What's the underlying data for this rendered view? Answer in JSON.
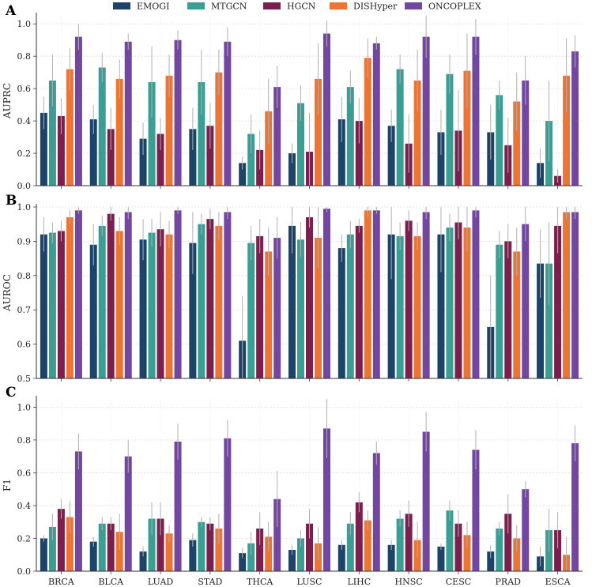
{
  "chart_data": {
    "type": "bar",
    "categories": [
      "BRCA",
      "BLCA",
      "LUAD",
      "STAD",
      "THCA",
      "LUSC",
      "LIHC",
      "HNSC",
      "CESC",
      "PRAD",
      "ESCA"
    ],
    "series": [
      {
        "name": "EMOGI",
        "color": "#1c4468"
      },
      {
        "name": "MTGCN",
        "color": "#3a9e94"
      },
      {
        "name": "HGCN",
        "color": "#7a1f4e"
      },
      {
        "name": "DISHyper",
        "color": "#ec7534"
      },
      {
        "name": "ONCOPLEX",
        "color": "#7346a2"
      }
    ],
    "panels": [
      {
        "label": "A",
        "ylabel": "AUPRC",
        "ylim": [
          0,
          1.05
        ],
        "yticks": [
          "0.0",
          "0.2",
          "0.4",
          "0.6",
          "0.8",
          "1.0"
        ],
        "show_xticklabels": false,
        "values": [
          [
            0.45,
            0.41,
            0.29,
            0.35,
            0.14,
            0.2,
            0.41,
            0.37,
            0.33,
            0.33,
            0.14
          ],
          [
            0.65,
            0.73,
            0.64,
            0.64,
            0.32,
            0.51,
            0.61,
            0.72,
            0.69,
            0.56,
            0.4
          ],
          [
            0.43,
            0.35,
            0.32,
            0.37,
            0.22,
            0.21,
            0.4,
            0.26,
            0.34,
            0.25,
            0.06
          ],
          [
            0.72,
            0.66,
            0.68,
            0.7,
            0.46,
            0.66,
            0.79,
            0.65,
            0.71,
            0.52,
            0.68
          ],
          [
            0.92,
            0.89,
            0.9,
            0.89,
            0.61,
            0.94,
            0.88,
            0.92,
            0.92,
            0.65,
            0.83
          ]
        ],
        "errors": [
          [
            0.1,
            0.09,
            0.1,
            0.13,
            0.04,
            0.06,
            0.14,
            0.1,
            0.14,
            0.17,
            0.09
          ],
          [
            0.16,
            0.09,
            0.22,
            0.2,
            0.12,
            0.11,
            0.1,
            0.09,
            0.12,
            0.09,
            0.25
          ],
          [
            0.11,
            0.13,
            0.1,
            0.14,
            0.12,
            0.24,
            0.14,
            0.18,
            0.25,
            0.17,
            0.04
          ],
          [
            0.13,
            0.12,
            0.13,
            0.14,
            0.2,
            0.22,
            0.12,
            0.19,
            0.23,
            0.18,
            0.23
          ],
          [
            0.08,
            0.05,
            0.06,
            0.09,
            0.13,
            0.08,
            0.04,
            0.13,
            0.11,
            0.15,
            0.1
          ]
        ]
      },
      {
        "label": "B",
        "ylabel": "AUROC",
        "ylim": [
          0.5,
          1.0
        ],
        "yticks": [
          "0.5",
          "0.6",
          "0.7",
          "0.8",
          "0.9",
          "1.0"
        ],
        "show_xticklabels": false,
        "values": [
          [
            0.92,
            0.89,
            0.905,
            0.895,
            0.61,
            0.945,
            0.88,
            0.92,
            0.92,
            0.65,
            0.835
          ],
          [
            0.925,
            0.945,
            0.925,
            0.95,
            0.895,
            0.905,
            0.92,
            0.915,
            0.94,
            0.89,
            0.835
          ],
          [
            0.93,
            0.98,
            0.935,
            0.965,
            0.915,
            0.97,
            0.945,
            0.96,
            0.955,
            0.9,
            0.945
          ],
          [
            0.97,
            0.93,
            0.92,
            0.945,
            0.87,
            0.91,
            0.99,
            0.915,
            0.94,
            0.87,
            0.985
          ],
          [
            0.99,
            0.985,
            0.99,
            0.985,
            0.91,
            0.995,
            0.99,
            0.985,
            0.99,
            0.95,
            0.985
          ]
        ],
        "errors": [
          [
            0.05,
            0.06,
            0.06,
            0.09,
            0.13,
            0.08,
            0.04,
            0.13,
            0.11,
            0.15,
            0.1
          ],
          [
            0.03,
            0.03,
            0.04,
            0.03,
            0.05,
            0.05,
            0.04,
            0.04,
            0.04,
            0.04,
            0.12
          ],
          [
            0.03,
            0.02,
            0.05,
            0.03,
            0.05,
            0.03,
            0.02,
            0.03,
            0.05,
            0.05,
            0.08
          ],
          [
            0.02,
            0.04,
            0.04,
            0.04,
            0.07,
            0.09,
            0.02,
            0.04,
            0.07,
            0.07,
            0.02
          ],
          [
            0.01,
            0.02,
            0.01,
            0.02,
            0.06,
            0.01,
            0.01,
            0.02,
            0.02,
            0.05,
            0.02
          ]
        ]
      },
      {
        "label": "C",
        "ylabel": "F1",
        "ylim": [
          0,
          1.05
        ],
        "yticks": [
          "0.0",
          "0.2",
          "0.4",
          "0.6",
          "0.8",
          "1.0"
        ],
        "show_xticklabels": true,
        "values": [
          [
            0.2,
            0.18,
            0.12,
            0.19,
            0.11,
            0.13,
            0.16,
            0.16,
            0.15,
            0.12,
            0.09
          ],
          [
            0.27,
            0.29,
            0.32,
            0.3,
            0.17,
            0.2,
            0.29,
            0.32,
            0.37,
            0.26,
            0.25
          ],
          [
            0.38,
            0.29,
            0.32,
            0.29,
            0.26,
            0.29,
            0.42,
            0.35,
            0.29,
            0.35,
            0.25
          ],
          [
            0.33,
            0.24,
            0.23,
            0.26,
            0.21,
            0.17,
            0.31,
            0.19,
            0.22,
            0.2,
            0.1
          ],
          [
            0.73,
            0.7,
            0.79,
            0.81,
            0.44,
            0.87,
            0.72,
            0.85,
            0.74,
            0.5,
            0.78
          ]
        ],
        "errors": [
          [
            0.02,
            0.03,
            0.03,
            0.04,
            0.03,
            0.03,
            0.03,
            0.03,
            0.02,
            0.04,
            0.06
          ],
          [
            0.08,
            0.04,
            0.1,
            0.03,
            0.07,
            0.05,
            0.07,
            0.05,
            0.06,
            0.04,
            0.13
          ],
          [
            0.06,
            0.04,
            0.1,
            0.04,
            0.1,
            0.09,
            0.06,
            0.08,
            0.08,
            0.12,
            0.11
          ],
          [
            0.1,
            0.11,
            0.05,
            0.09,
            0.09,
            0.1,
            0.06,
            0.11,
            0.08,
            0.08,
            0.11
          ],
          [
            0.11,
            0.1,
            0.11,
            0.11,
            0.17,
            0.18,
            0.07,
            0.12,
            0.12,
            0.05,
            0.11
          ]
        ]
      }
    ],
    "grid": true,
    "legend_position": "top"
  }
}
